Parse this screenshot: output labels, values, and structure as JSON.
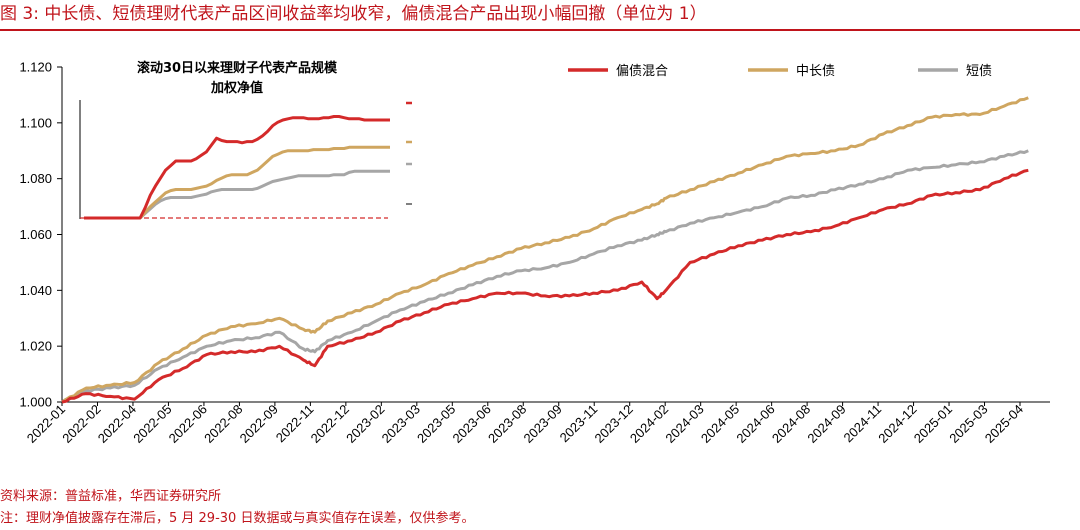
{
  "header": {
    "title": "图 3: 中长债、短债理财代表产品区间收益率均收窄，偏债混合产品出现小幅回撤（单位为 1）"
  },
  "footer": {
    "source": "资料来源：普益标准，华西证券研究所",
    "note": "注：理财净值披露存在滞后，5 月 29-30 日数据或与真实值存在误差，仅供参考。"
  },
  "colors": {
    "title": "#c0141b",
    "mixed": "#d42a2a",
    "long": "#cfa660",
    "short": "#a6a6a6"
  },
  "chart_data": [
    {
      "type": "line",
      "title": "",
      "xlabel": "",
      "ylabel": "",
      "ylim": [
        1.0,
        1.12
      ],
      "yticks": [
        "1.000",
        "1.020",
        "1.040",
        "1.060",
        "1.080",
        "1.100",
        "1.120"
      ],
      "legend_position": "top-right",
      "grid": false,
      "x_tick_labels": [
        "2022-01",
        "2022-02",
        "2022-04",
        "2022-05",
        "2022-06",
        "2022-08",
        "2022-09",
        "2022-11",
        "2022-12",
        "2023-02",
        "2023-03",
        "2023-05",
        "2023-06",
        "2023-08",
        "2023-09",
        "2023-11",
        "2023-12",
        "2024-02",
        "2024-03",
        "2024-05",
        "2024-06",
        "2024-08",
        "2024-09",
        "2024-11",
        "2024-12",
        "2025-01",
        "2025-03",
        "2025-04"
      ],
      "x": [
        "2022-01",
        "2022-02",
        "2022-03",
        "2022-04",
        "2022-05",
        "2022-06",
        "2022-07",
        "2022-08",
        "2022-09",
        "2022-10",
        "2022-11",
        "2022-11-15",
        "2022-12",
        "2023-01",
        "2023-02",
        "2023-03",
        "2023-04",
        "2023-05",
        "2023-06",
        "2023-07",
        "2023-08",
        "2023-09",
        "2023-10",
        "2023-11",
        "2023-12",
        "2024-01",
        "2024-01-20",
        "2024-02",
        "2024-03",
        "2024-04",
        "2024-05",
        "2024-06",
        "2024-07",
        "2024-08",
        "2024-09",
        "2024-10",
        "2024-11",
        "2024-12",
        "2025-01",
        "2025-02",
        "2025-03",
        "2025-04",
        "2025-05"
      ],
      "series": [
        {
          "name": "偏债混合",
          "color": "#d42a2a",
          "values": [
            1.0,
            1.003,
            1.002,
            1.001,
            1.008,
            1.012,
            1.017,
            1.018,
            1.018,
            1.02,
            1.015,
            1.013,
            1.02,
            1.022,
            1.025,
            1.029,
            1.032,
            1.035,
            1.037,
            1.039,
            1.039,
            1.038,
            1.038,
            1.039,
            1.04,
            1.043,
            1.037,
            1.04,
            1.05,
            1.053,
            1.056,
            1.058,
            1.06,
            1.061,
            1.063,
            1.066,
            1.069,
            1.071,
            1.074,
            1.075,
            1.076,
            1.08,
            1.083
          ]
        },
        {
          "name": "中长债",
          "color": "#cfa660",
          "values": [
            1.0,
            1.005,
            1.006,
            1.007,
            1.014,
            1.019,
            1.024,
            1.027,
            1.028,
            1.03,
            1.026,
            1.025,
            1.029,
            1.032,
            1.035,
            1.039,
            1.042,
            1.046,
            1.049,
            1.052,
            1.055,
            1.057,
            1.059,
            1.062,
            1.066,
            1.069,
            1.071,
            1.073,
            1.076,
            1.079,
            1.082,
            1.085,
            1.088,
            1.089,
            1.09,
            1.092,
            1.096,
            1.099,
            1.102,
            1.103,
            1.103,
            1.106,
            1.109
          ]
        },
        {
          "name": "短债",
          "color": "#a6a6a6",
          "values": [
            1.0,
            1.004,
            1.005,
            1.006,
            1.012,
            1.016,
            1.02,
            1.022,
            1.023,
            1.025,
            1.019,
            1.018,
            1.022,
            1.025,
            1.029,
            1.033,
            1.036,
            1.039,
            1.042,
            1.045,
            1.047,
            1.048,
            1.05,
            1.053,
            1.056,
            1.058,
            1.06,
            1.061,
            1.064,
            1.066,
            1.068,
            1.07,
            1.073,
            1.074,
            1.076,
            1.078,
            1.08,
            1.083,
            1.084,
            1.085,
            1.086,
            1.088,
            1.09
          ]
        }
      ]
    },
    {
      "type": "line",
      "title": "滚动30日以来理财子代表产品规模加权净值",
      "title_lines": [
        "滚动30日以来理财子代表产品规模",
        "加权净值"
      ],
      "xlabel": "",
      "ylabel": "",
      "ylim": [
        0,
        1
      ],
      "x": [
        0,
        1,
        2,
        3,
        4,
        5,
        6,
        7,
        8,
        9,
        10,
        11,
        12,
        13,
        14,
        15,
        16,
        17,
        18,
        19,
        20,
        21,
        22,
        23,
        24,
        25,
        26,
        27,
        28,
        29,
        30,
        31,
        32,
        33,
        34,
        35,
        36,
        37,
        38,
        39,
        40,
        41,
        42,
        43,
        44,
        45,
        46,
        47,
        48,
        49,
        50,
        51,
        52,
        53,
        54,
        55,
        56,
        57,
        58,
        59,
        60
      ],
      "series": [
        {
          "name": "偏债混合",
          "color": "#d42a2a",
          "values": [
            0.0,
            0.0,
            0.0,
            0.0,
            0.0,
            0.0,
            0.0,
            0.0,
            0.0,
            0.0,
            0.0,
            0.0,
            0.09,
            0.2,
            0.28,
            0.35,
            0.42,
            0.46,
            0.5,
            0.5,
            0.5,
            0.5,
            0.52,
            0.55,
            0.58,
            0.64,
            0.7,
            0.68,
            0.67,
            0.67,
            0.67,
            0.66,
            0.67,
            0.67,
            0.69,
            0.72,
            0.76,
            0.81,
            0.84,
            0.86,
            0.87,
            0.88,
            0.88,
            0.88,
            0.87,
            0.87,
            0.87,
            0.88,
            0.88,
            0.89,
            0.89,
            0.88,
            0.87,
            0.87,
            0.87,
            0.86,
            0.86,
            0.86,
            0.86,
            0.86,
            0.86
          ]
        },
        {
          "name": "中长债",
          "color": "#cfa660",
          "values": [
            0.0,
            0.0,
            0.0,
            0.0,
            0.0,
            0.0,
            0.0,
            0.0,
            0.0,
            0.0,
            0.0,
            0.0,
            0.05,
            0.1,
            0.14,
            0.18,
            0.22,
            0.24,
            0.25,
            0.25,
            0.25,
            0.25,
            0.26,
            0.27,
            0.28,
            0.3,
            0.33,
            0.35,
            0.37,
            0.38,
            0.38,
            0.38,
            0.38,
            0.4,
            0.42,
            0.46,
            0.5,
            0.54,
            0.56,
            0.58,
            0.59,
            0.59,
            0.59,
            0.59,
            0.59,
            0.6,
            0.6,
            0.6,
            0.6,
            0.61,
            0.61,
            0.61,
            0.62,
            0.62,
            0.62,
            0.62,
            0.62,
            0.62,
            0.62,
            0.62,
            0.62
          ]
        },
        {
          "name": "短债",
          "color": "#a6a6a6",
          "values": [
            0.0,
            0.0,
            0.0,
            0.0,
            0.0,
            0.0,
            0.0,
            0.0,
            0.0,
            0.0,
            0.0,
            0.0,
            0.04,
            0.08,
            0.12,
            0.15,
            0.17,
            0.18,
            0.18,
            0.18,
            0.18,
            0.18,
            0.19,
            0.2,
            0.21,
            0.23,
            0.24,
            0.25,
            0.25,
            0.25,
            0.25,
            0.25,
            0.25,
            0.25,
            0.26,
            0.28,
            0.3,
            0.32,
            0.33,
            0.34,
            0.35,
            0.36,
            0.37,
            0.37,
            0.37,
            0.37,
            0.37,
            0.37,
            0.37,
            0.38,
            0.38,
            0.38,
            0.4,
            0.41,
            0.41,
            0.41,
            0.41,
            0.41,
            0.41,
            0.41,
            0.41
          ]
        }
      ]
    }
  ]
}
